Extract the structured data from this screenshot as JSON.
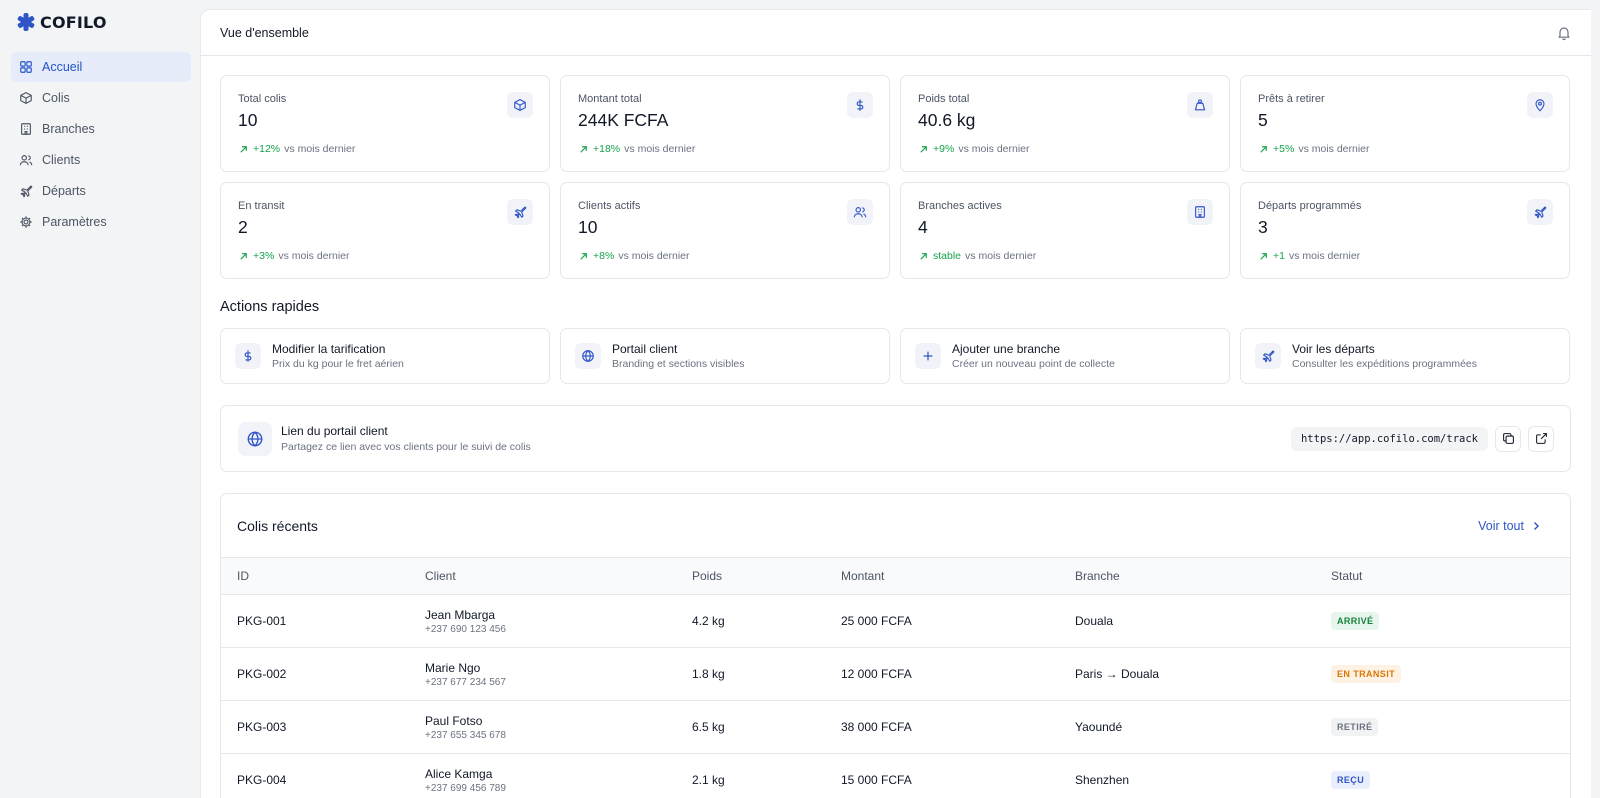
{
  "app": {
    "name": "COFILO",
    "accent_color": "#2f55c7"
  },
  "sidebar": {
    "items": [
      {
        "label": "Accueil",
        "icon": "dashboard-grid-icon",
        "active": true
      },
      {
        "label": "Colis",
        "icon": "package-icon"
      },
      {
        "label": "Branches",
        "icon": "building-icon"
      },
      {
        "label": "Clients",
        "icon": "users-icon"
      },
      {
        "label": "Départs",
        "icon": "plane-icon"
      },
      {
        "label": "Paramètres",
        "icon": "gear-icon"
      }
    ]
  },
  "header": {
    "title": "Vue d'ensemble",
    "icon": "bell-icon"
  },
  "stats": [
    {
      "label": "Total colis",
      "value": "10",
      "trend": "+12%",
      "suffix": "vs mois dernier",
      "icon": "package-icon"
    },
    {
      "label": "Montant total",
      "value": "244K FCFA",
      "trend": "+18%",
      "suffix": "vs mois dernier",
      "icon": "dollar-icon"
    },
    {
      "label": "Poids total",
      "value": "40.6 kg",
      "trend": "+9%",
      "suffix": "vs mois dernier",
      "icon": "weight-icon"
    },
    {
      "label": "Prêts à retirer",
      "value": "5",
      "trend": "+5%",
      "suffix": "vs mois dernier",
      "icon": "map-pin-icon"
    },
    {
      "label": "En transit",
      "value": "2",
      "trend": "+3%",
      "suffix": "vs mois dernier",
      "icon": "plane-icon"
    },
    {
      "label": "Clients actifs",
      "value": "10",
      "trend": "+8%",
      "suffix": "vs mois dernier",
      "icon": "users-icon"
    },
    {
      "label": "Branches actives",
      "value": "4",
      "trend": "stable",
      "suffix": "vs mois dernier",
      "icon": "building-icon"
    },
    {
      "label": "Départs programmés",
      "value": "3",
      "trend": "+1",
      "suffix": "vs mois dernier",
      "icon": "plane-icon"
    }
  ],
  "quick_actions": {
    "title": "Actions rapides",
    "items": [
      {
        "title": "Modifier la tarification",
        "subtitle": "Prix du kg pour le fret aérien",
        "icon": "dollar-icon"
      },
      {
        "title": "Portail client",
        "subtitle": "Branding et sections visibles",
        "icon": "globe-icon"
      },
      {
        "title": "Ajouter une branche",
        "subtitle": "Créer un nouveau point de collecte",
        "icon": "plus-icon"
      },
      {
        "title": "Voir les départs",
        "subtitle": "Consulter les expéditions programmées",
        "icon": "plane-icon"
      }
    ]
  },
  "portal": {
    "title": "Lien du portail client",
    "subtitle": "Partagez ce lien avec vos clients pour le suivi de colis",
    "url": "https://app.cofilo.com/track",
    "copy_icon": "copy-icon",
    "open_icon": "external-link-icon"
  },
  "recent": {
    "title": "Colis récents",
    "see_all": "Voir tout",
    "columns": [
      "ID",
      "Client",
      "Poids",
      "Montant",
      "Branche",
      "Statut"
    ],
    "rows": [
      {
        "id": "PKG-001",
        "client": "Jean Mbarga",
        "phone": "+237 690 123 456",
        "weight": "4.2 kg",
        "amount": "25 000 FCFA",
        "branch": "Douala",
        "status": "ARRIVÉ",
        "status_color": "#15803d"
      },
      {
        "id": "PKG-002",
        "client": "Marie Ngo",
        "phone": "+237 677 234 567",
        "weight": "1.8 kg",
        "amount": "12 000 FCFA",
        "branch": "Paris → Douala",
        "status": "EN TRANSIT",
        "status_color": "#d97706"
      },
      {
        "id": "PKG-003",
        "client": "Paul Fotso",
        "phone": "+237 655 345 678",
        "weight": "6.5 kg",
        "amount": "38 000 FCFA",
        "branch": "Yaoundé",
        "status": "RETIRÉ",
        "status_color": "#6b7280"
      },
      {
        "id": "PKG-004",
        "client": "Alice Kamga",
        "phone": "+237 699 456 789",
        "weight": "2.1 kg",
        "amount": "15 000 FCFA",
        "branch": "Shenzhen",
        "status": "REÇU",
        "status_color": "#2f55c7"
      }
    ]
  }
}
